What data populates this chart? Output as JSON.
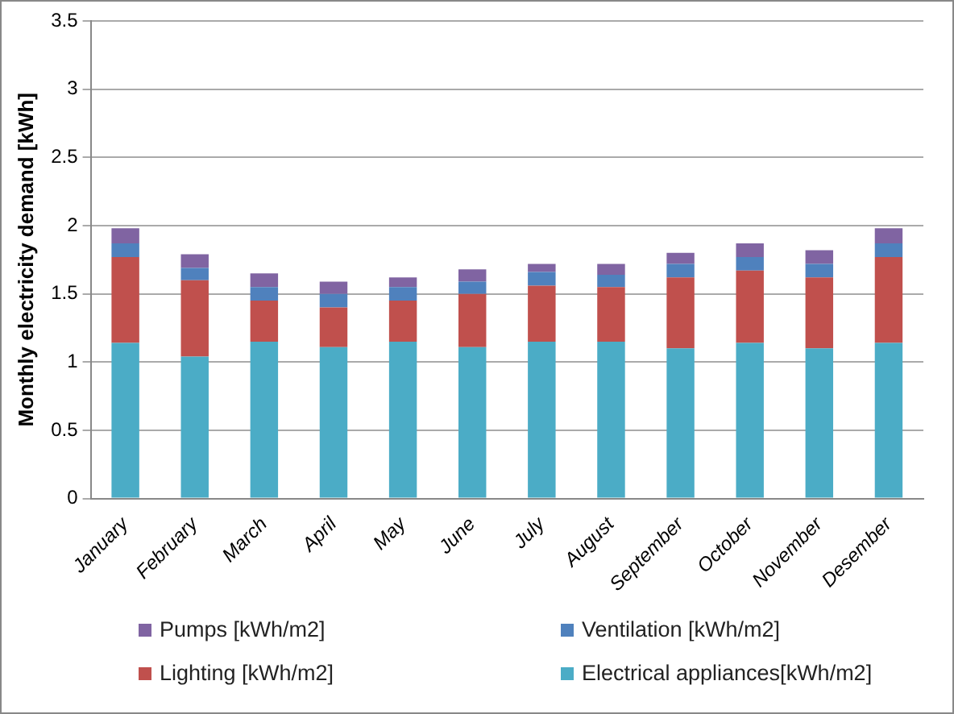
{
  "chart_data": {
    "type": "bar",
    "stacked": true,
    "ylabel": "Monthly electricity demand [kWh]",
    "categories": [
      "January",
      "February",
      "March",
      "April",
      "May",
      "June",
      "July",
      "August",
      "September",
      "October",
      "November",
      "Desember"
    ],
    "series": [
      {
        "name": "Electrical appliances[kWh/m2]",
        "color": "#4bacc6",
        "values": [
          1.14,
          1.04,
          1.15,
          1.11,
          1.15,
          1.11,
          1.15,
          1.15,
          1.1,
          1.14,
          1.1,
          1.14
        ]
      },
      {
        "name": "Lighting [kWh/m2]",
        "color": "#c0504d",
        "values": [
          0.63,
          0.56,
          0.3,
          0.29,
          0.3,
          0.39,
          0.41,
          0.4,
          0.52,
          0.53,
          0.52,
          0.63
        ]
      },
      {
        "name": "Ventilation [kWh/m2]",
        "color": "#4f81bd",
        "values": [
          0.1,
          0.09,
          0.1,
          0.1,
          0.1,
          0.09,
          0.1,
          0.09,
          0.1,
          0.1,
          0.1,
          0.1
        ]
      },
      {
        "name": "Pumps [kWh/m2]",
        "color": "#8064a2",
        "values": [
          0.11,
          0.1,
          0.1,
          0.09,
          0.07,
          0.09,
          0.06,
          0.08,
          0.08,
          0.1,
          0.1,
          0.11
        ]
      }
    ],
    "ylim": [
      0,
      3.5
    ],
    "yticks": [
      0,
      0.5,
      1,
      1.5,
      2,
      2.5,
      3,
      3.5
    ],
    "grid": "y",
    "legend": "bottom"
  }
}
